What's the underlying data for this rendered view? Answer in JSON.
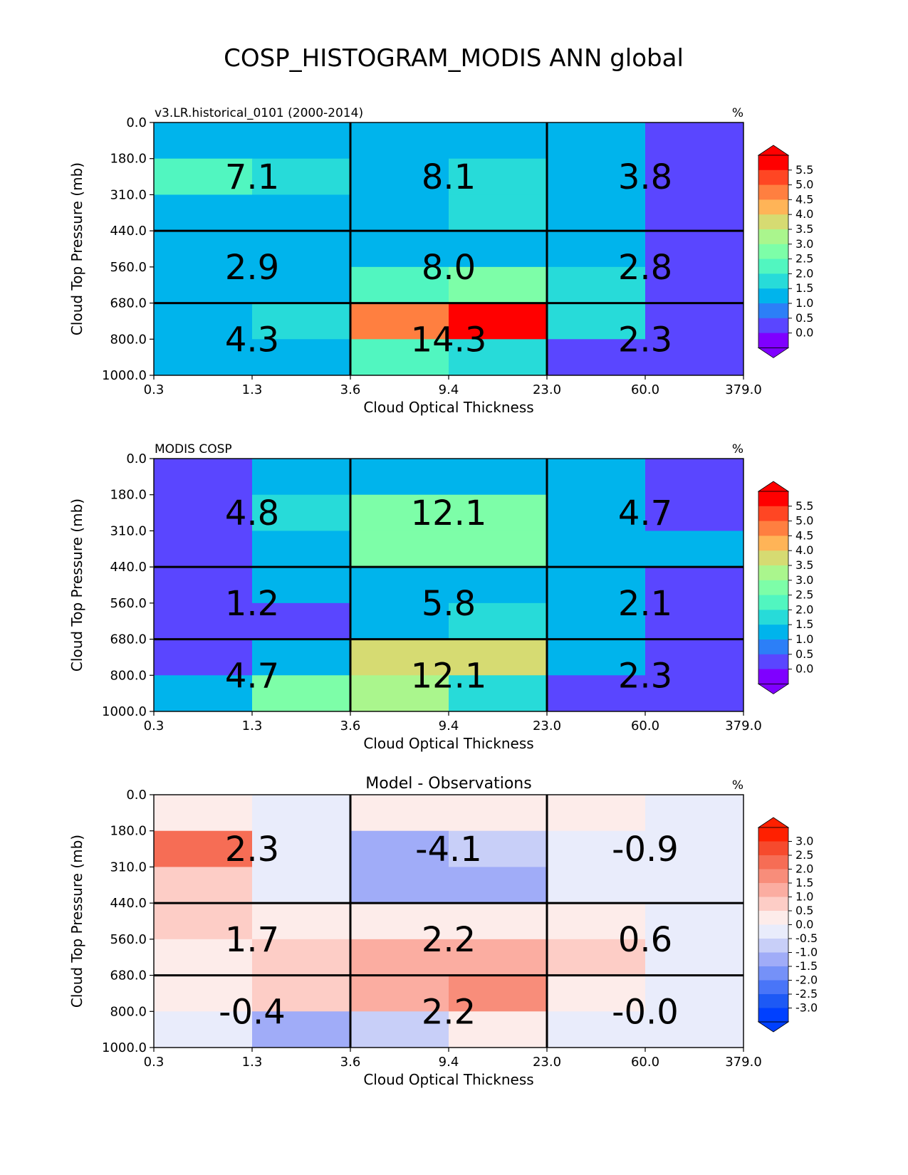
{
  "title": "COSP_HISTOGRAM_MODIS ANN global",
  "palettes": {
    "rainbow": [
      "#7f00ff",
      "#5a46ff",
      "#2c7ff7",
      "#00b4ec",
      "#27dbd9",
      "#51f6c0",
      "#7dfea8",
      "#aaf68d",
      "#d6db72",
      "#ffb457",
      "#ff7f40",
      "#ff4623",
      "#ff0000"
    ],
    "diff": [
      "#0040ff",
      "#1d59f5",
      "#4975f8",
      "#7591f8",
      "#a0acf8",
      "#c8cff8",
      "#e9ecfb",
      "#fdecea",
      "#fdcdc6",
      "#fbada1",
      "#f88d7a",
      "#f66d55",
      "#f64a2d",
      "#ff2000"
    ]
  },
  "chart_data": [
    {
      "type": "heatmap",
      "title": "",
      "left_label": "v3.LR.historical_0101 (2000-2014)",
      "right_label": "%",
      "xlabel": "Cloud Optical Thickness",
      "ylabel": "Cloud Top Pressure (mb)",
      "x_ticks": [
        "0.3",
        "1.3",
        "3.6",
        "9.4",
        "23.0",
        "60.0",
        "379.0"
      ],
      "y_ticks": [
        "0.0",
        "180.0",
        "310.0",
        "440.0",
        "560.0",
        "680.0",
        "800.0",
        "1000.0"
      ],
      "cells": [
        [
          1.0,
          1.0,
          1.0,
          1.0,
          1.0,
          0.2
        ],
        [
          2.2,
          1.7,
          1.2,
          1.7,
          1.2,
          0.2
        ],
        [
          1.2,
          1.0,
          1.2,
          1.7,
          1.2,
          0.2
        ],
        [
          1.0,
          1.0,
          1.2,
          1.2,
          1.0,
          0.2
        ],
        [
          1.0,
          1.2,
          2.2,
          2.7,
          1.7,
          0.2
        ],
        [
          1.0,
          1.7,
          4.7,
          5.7,
          1.7,
          0.2
        ],
        [
          1.0,
          1.2,
          2.2,
          1.7,
          0.2,
          0.2
        ]
      ],
      "block_totals": [
        [
          "7.1",
          "8.1",
          "3.8"
        ],
        [
          "2.9",
          "8.0",
          "2.8"
        ],
        [
          "4.3",
          "14.3",
          "2.3"
        ]
      ],
      "colorbar": {
        "palette": "rainbow",
        "ticks": [
          "5.5",
          "5.0",
          "4.5",
          "4.0",
          "3.5",
          "3.0",
          "2.5",
          "2.0",
          "1.5",
          "1.0",
          "0.5",
          "0.0"
        ],
        "bounds": [
          0.0,
          0.5,
          1.0,
          1.5,
          2.0,
          2.5,
          3.0,
          3.5,
          4.0,
          4.5,
          5.0,
          5.5
        ],
        "extend": "both"
      }
    },
    {
      "type": "heatmap",
      "title": "",
      "left_label": "MODIS COSP",
      "right_label": "%",
      "xlabel": "Cloud Optical Thickness",
      "ylabel": "Cloud Top Pressure (mb)",
      "x_ticks": [
        "0.3",
        "1.3",
        "3.6",
        "9.4",
        "23.0",
        "60.0",
        "379.0"
      ],
      "y_ticks": [
        "0.0",
        "180.0",
        "310.0",
        "440.0",
        "560.0",
        "680.0",
        "800.0",
        "1000.0"
      ],
      "cells": [
        [
          0.2,
          1.0,
          1.0,
          1.0,
          1.0,
          0.2
        ],
        [
          0.2,
          1.7,
          2.7,
          2.7,
          1.2,
          0.2
        ],
        [
          0.2,
          1.2,
          2.7,
          2.7,
          1.2,
          1.0
        ],
        [
          0.2,
          1.0,
          1.2,
          1.2,
          1.0,
          0.2
        ],
        [
          0.2,
          0.2,
          1.2,
          1.7,
          1.0,
          0.2
        ],
        [
          0.2,
          1.2,
          3.7,
          3.7,
          1.2,
          0.2
        ],
        [
          1.0,
          2.7,
          3.2,
          1.7,
          0.2,
          0.2
        ]
      ],
      "block_totals": [
        [
          "4.8",
          "12.1",
          "4.7"
        ],
        [
          "1.2",
          "5.8",
          "2.1"
        ],
        [
          "4.7",
          "12.1",
          "2.3"
        ]
      ],
      "colorbar": {
        "palette": "rainbow",
        "ticks": [
          "5.5",
          "5.0",
          "4.5",
          "4.0",
          "3.5",
          "3.0",
          "2.5",
          "2.0",
          "1.5",
          "1.0",
          "0.5",
          "0.0"
        ],
        "bounds": [
          0.0,
          0.5,
          1.0,
          1.5,
          2.0,
          2.5,
          3.0,
          3.5,
          4.0,
          4.5,
          5.0,
          5.5
        ],
        "extend": "both"
      }
    },
    {
      "type": "heatmap",
      "title": "Model - Observations",
      "left_label": "",
      "right_label": "%",
      "xlabel": "Cloud Optical Thickness",
      "ylabel": "Cloud Top Pressure (mb)",
      "x_ticks": [
        "0.3",
        "1.3",
        "3.6",
        "9.4",
        "23.0",
        "60.0",
        "379.0"
      ],
      "y_ticks": [
        "0.0",
        "180.0",
        "310.0",
        "440.0",
        "560.0",
        "680.0",
        "800.0",
        "1000.0"
      ],
      "cells": [
        [
          0.2,
          -0.2,
          0.2,
          0.2,
          0.2,
          -0.2
        ],
        [
          2.2,
          -0.2,
          -1.2,
          -0.7,
          -0.2,
          -0.2
        ],
        [
          0.7,
          -0.2,
          -1.2,
          -1.2,
          -0.2,
          -0.2
        ],
        [
          0.7,
          0.2,
          0.2,
          0.2,
          0.2,
          -0.2
        ],
        [
          0.2,
          0.7,
          1.2,
          1.2,
          0.7,
          -0.2
        ],
        [
          0.2,
          0.7,
          1.2,
          1.7,
          0.2,
          -0.2
        ],
        [
          -0.2,
          -1.2,
          -0.7,
          0.2,
          -0.2,
          -0.2
        ]
      ],
      "block_totals": [
        [
          "2.3",
          "-4.1",
          "-0.9"
        ],
        [
          "1.7",
          "2.2",
          "0.6"
        ],
        [
          "-0.4",
          "2.2",
          "-0.0"
        ]
      ],
      "colorbar": {
        "palette": "diff",
        "ticks": [
          "3.0",
          "2.5",
          "2.0",
          "1.5",
          "1.0",
          "0.5",
          "0.0",
          "-0.5",
          "-1.0",
          "-1.5",
          "-2.0",
          "-2.5",
          "-3.0"
        ],
        "bounds": [
          -3.0,
          -2.5,
          -2.0,
          -1.5,
          -1.0,
          -0.5,
          0.0,
          0.5,
          1.0,
          1.5,
          2.0,
          2.5,
          3.0
        ],
        "extend": "both"
      }
    }
  ]
}
